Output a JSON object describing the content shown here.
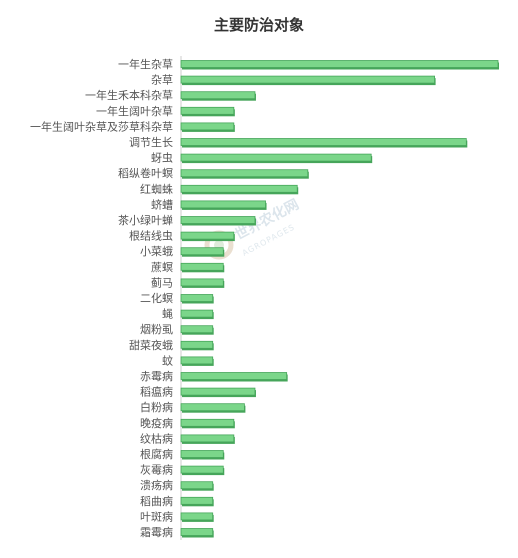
{
  "chart_data": {
    "type": "bar",
    "orientation": "horizontal",
    "title": "主要防治对象",
    "xlabel": "",
    "ylabel": "",
    "grid": false,
    "xlim": [
      0,
      30
    ],
    "bar_color": "#7bd68a",
    "bar_edge_color": "#46a55a",
    "categories": [
      "一年生杂草",
      "杂草",
      "一年生禾本科杂草",
      "一年生阔叶杂草",
      "一年生阔叶杂草及莎草科杂草",
      "调节生长",
      "蚜虫",
      "稻纵卷叶螟",
      "红蜘蛛",
      "蛴螬",
      "茶小绿叶蝉",
      "根结线虫",
      "小菜蛾",
      "蔗螟",
      "蓟马",
      "二化螟",
      "蝇",
      "烟粉虱",
      "甜菜夜蛾",
      "蚊",
      "赤霉病",
      "稻瘟病",
      "白粉病",
      "晚疫病",
      "纹枯病",
      "根腐病",
      "灰霉病",
      "溃疡病",
      "稻曲病",
      "叶斑病",
      "霜霉病"
    ],
    "values": [
      30,
      24,
      7,
      5,
      5,
      27,
      18,
      12,
      11,
      8,
      7,
      5,
      4,
      4,
      4,
      3,
      3,
      3,
      3,
      3,
      10,
      7,
      6,
      5,
      5,
      4,
      4,
      3,
      3,
      3,
      3
    ]
  },
  "watermark": {
    "name": "世界农化网",
    "sub": "AGROPAGES"
  }
}
